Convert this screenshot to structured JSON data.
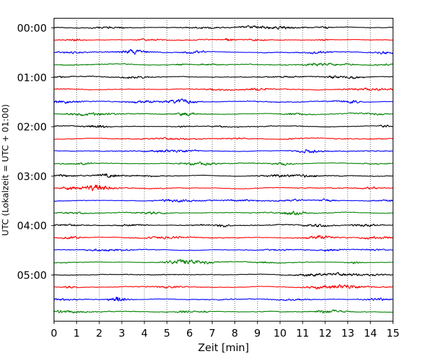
{
  "chart_data": {
    "type": "line",
    "title": "",
    "xlabel": "Zeit  [min]",
    "ylabel": "UTC (Lokalzeit = UTC + 01:00)",
    "x_range": [
      0,
      15
    ],
    "x_ticks": [
      "0",
      "1",
      "2",
      "3",
      "4",
      "5",
      "6",
      "7",
      "8",
      "9",
      "10",
      "11",
      "12",
      "13",
      "14",
      "15"
    ],
    "y_ticks": [
      "00:00",
      "01:00",
      "02:00",
      "03:00",
      "04:00",
      "05:00"
    ],
    "grid": "vertical dotted",
    "trace_colors": [
      "#000000",
      "#ff0000",
      "#0000ff",
      "#008000"
    ],
    "trace_minutes_interval": 15,
    "traces": [
      {
        "start": "00:00",
        "color": "#000000"
      },
      {
        "start": "00:15",
        "color": "#ff0000"
      },
      {
        "start": "00:30",
        "color": "#0000ff"
      },
      {
        "start": "00:45",
        "color": "#008000"
      },
      {
        "start": "01:00",
        "color": "#000000"
      },
      {
        "start": "01:15",
        "color": "#ff0000"
      },
      {
        "start": "01:30",
        "color": "#0000ff"
      },
      {
        "start": "01:45",
        "color": "#008000"
      },
      {
        "start": "02:00",
        "color": "#000000"
      },
      {
        "start": "02:15",
        "color": "#ff0000"
      },
      {
        "start": "02:30",
        "color": "#0000ff"
      },
      {
        "start": "02:45",
        "color": "#008000"
      },
      {
        "start": "03:00",
        "color": "#000000"
      },
      {
        "start": "03:15",
        "color": "#ff0000"
      },
      {
        "start": "03:30",
        "color": "#0000ff"
      },
      {
        "start": "03:45",
        "color": "#008000"
      },
      {
        "start": "04:00",
        "color": "#000000"
      },
      {
        "start": "04:15",
        "color": "#ff0000"
      },
      {
        "start": "04:30",
        "color": "#0000ff"
      },
      {
        "start": "04:45",
        "color": "#008000"
      },
      {
        "start": "05:00",
        "color": "#000000"
      },
      {
        "start": "05:15",
        "color": "#ff0000"
      },
      {
        "start": "05:30",
        "color": "#0000ff"
      },
      {
        "start": "05:45",
        "color": "#008000"
      }
    ]
  }
}
